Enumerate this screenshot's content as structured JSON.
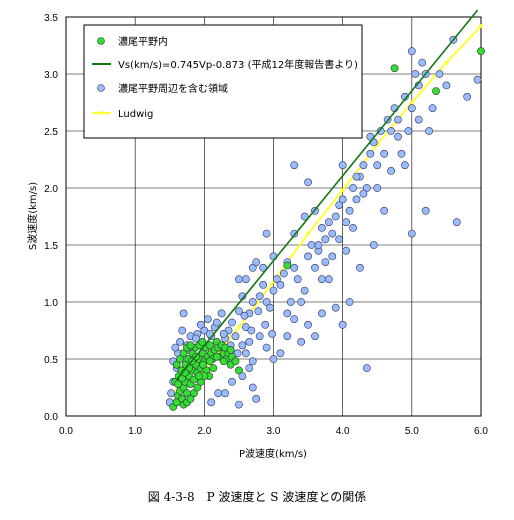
{
  "caption": "図 4-3-8　P 波速度と S 波速度との関係",
  "chart_data": {
    "type": "scatter",
    "title": "",
    "xlabel": "P波速度(km/s)",
    "ylabel": "S波速度(km/s)",
    "xlim": [
      0.0,
      6.0
    ],
    "ylim": [
      0.0,
      3.5
    ],
    "xticks": [
      "0.0",
      "1.0",
      "2.0",
      "3.0",
      "4.0",
      "5.0",
      "6.0"
    ],
    "yticks": [
      "0.0",
      "0.5",
      "1.0",
      "1.5",
      "2.0",
      "2.5",
      "3.0",
      "3.5"
    ],
    "grid": true,
    "legend_position": "top-left",
    "series": [
      {
        "name": "濃尾平野内",
        "kind": "scatter",
        "color": "#33dd33",
        "points": [
          [
            1.55,
            0.08
          ],
          [
            1.6,
            0.12
          ],
          [
            1.62,
            0.18
          ],
          [
            1.65,
            0.22
          ],
          [
            1.68,
            0.15
          ],
          [
            1.7,
            0.25
          ],
          [
            1.72,
            0.3
          ],
          [
            1.75,
            0.2
          ],
          [
            1.78,
            0.35
          ],
          [
            1.8,
            0.28
          ],
          [
            1.82,
            0.4
          ],
          [
            1.85,
            0.32
          ],
          [
            1.88,
            0.45
          ],
          [
            1.9,
            0.38
          ],
          [
            1.92,
            0.5
          ],
          [
            1.95,
            0.42
          ],
          [
            1.98,
            0.55
          ],
          [
            2.0,
            0.48
          ],
          [
            2.02,
            0.6
          ],
          [
            2.05,
            0.52
          ],
          [
            2.08,
            0.62
          ],
          [
            2.1,
            0.55
          ],
          [
            2.12,
            0.5
          ],
          [
            2.15,
            0.58
          ],
          [
            2.18,
            0.65
          ],
          [
            2.2,
            0.6
          ],
          [
            2.22,
            0.52
          ],
          [
            2.25,
            0.62
          ],
          [
            2.28,
            0.55
          ],
          [
            2.3,
            0.6
          ],
          [
            2.32,
            0.5
          ],
          [
            2.35,
            0.55
          ],
          [
            2.38,
            0.45
          ],
          [
            2.4,
            0.52
          ],
          [
            2.45,
            0.48
          ],
          [
            2.5,
            0.4
          ],
          [
            1.58,
            0.3
          ],
          [
            1.63,
            0.35
          ],
          [
            1.67,
            0.4
          ],
          [
            1.73,
            0.45
          ],
          [
            1.77,
            0.5
          ],
          [
            1.83,
            0.55
          ],
          [
            1.87,
            0.6
          ],
          [
            1.93,
            0.62
          ],
          [
            1.97,
            0.65
          ],
          [
            2.03,
            0.4
          ],
          [
            2.07,
            0.35
          ],
          [
            2.13,
            0.42
          ],
          [
            1.6,
            0.45
          ],
          [
            1.65,
            0.5
          ],
          [
            1.7,
            0.55
          ],
          [
            1.75,
            0.6
          ],
          [
            1.8,
            0.62
          ],
          [
            1.85,
            0.2
          ],
          [
            1.9,
            0.25
          ],
          [
            1.95,
            0.3
          ],
          [
            2.0,
            0.35
          ],
          [
            1.7,
            0.1
          ],
          [
            1.75,
            0.12
          ],
          [
            1.8,
            0.15
          ],
          [
            1.62,
            0.28
          ],
          [
            1.68,
            0.33
          ],
          [
            1.78,
            0.42
          ],
          [
            1.88,
            0.52
          ],
          [
            1.98,
            0.45
          ],
          [
            2.08,
            0.48
          ],
          [
            2.18,
            0.52
          ],
          [
            2.28,
            0.48
          ],
          [
            2.38,
            0.58
          ],
          [
            1.72,
            0.38
          ],
          [
            1.82,
            0.48
          ],
          [
            1.92,
            0.35
          ],
          [
            3.2,
            1.32
          ],
          [
            4.75,
            3.05
          ],
          [
            5.35,
            2.85
          ],
          [
            6.0,
            3.2
          ]
        ]
      },
      {
        "name": "Vs(km/s)=0.745Vp-0.873 (平成12年度報告書より)",
        "kind": "line",
        "color": "#117711",
        "x": [
          1.6,
          5.95
        ],
        "y": [
          0.319,
          3.56
        ]
      },
      {
        "name": "濃尾平野周辺を含む領域",
        "kind": "scatter",
        "color": "#99bbff",
        "points": [
          [
            1.5,
            0.12
          ],
          [
            1.52,
            0.2
          ],
          [
            1.55,
            0.3
          ],
          [
            1.6,
            0.42
          ],
          [
            1.62,
            0.55
          ],
          [
            1.65,
            0.65
          ],
          [
            1.68,
            0.75
          ],
          [
            1.7,
            0.9
          ],
          [
            1.72,
            0.5
          ],
          [
            1.58,
            0.6
          ],
          [
            1.75,
            0.62
          ],
          [
            1.8,
            0.7
          ],
          [
            1.85,
            0.6
          ],
          [
            1.9,
            0.72
          ],
          [
            1.95,
            0.8
          ],
          [
            2.0,
            0.75
          ],
          [
            2.05,
            0.85
          ],
          [
            2.1,
            0.7
          ],
          [
            2.15,
            0.78
          ],
          [
            2.2,
            0.6
          ],
          [
            2.25,
            0.9
          ],
          [
            2.3,
            0.68
          ],
          [
            2.35,
            0.75
          ],
          [
            2.4,
            0.82
          ],
          [
            2.45,
            0.7
          ],
          [
            2.5,
            0.92
          ],
          [
            2.55,
            0.62
          ],
          [
            2.6,
            0.55
          ],
          [
            2.65,
            0.42
          ],
          [
            2.7,
            0.25
          ],
          [
            2.75,
            0.15
          ],
          [
            2.4,
            0.3
          ],
          [
            2.3,
            0.2
          ],
          [
            2.5,
            0.1
          ],
          [
            2.2,
            0.2
          ],
          [
            2.1,
            0.12
          ],
          [
            2.55,
            0.35
          ],
          [
            2.6,
            0.78
          ],
          [
            2.65,
            0.9
          ],
          [
            2.7,
            1.0
          ],
          [
            2.5,
            1.2
          ],
          [
            2.55,
            1.05
          ],
          [
            2.6,
            1.2
          ],
          [
            2.7,
            1.3
          ],
          [
            2.75,
            1.35
          ],
          [
            2.8,
            1.05
          ],
          [
            2.85,
            1.15
          ],
          [
            2.9,
            1.0
          ],
          [
            2.95,
            0.95
          ],
          [
            3.0,
            1.1
          ],
          [
            3.05,
            1.2
          ],
          [
            3.1,
            1.15
          ],
          [
            3.15,
            1.25
          ],
          [
            3.2,
            0.9
          ],
          [
            3.25,
            1.0
          ],
          [
            3.3,
            1.3
          ],
          [
            3.35,
            1.2
          ],
          [
            3.4,
            1.0
          ],
          [
            3.45,
            1.1
          ],
          [
            3.5,
            1.4
          ],
          [
            3.55,
            1.5
          ],
          [
            3.6,
            1.3
          ],
          [
            3.65,
            1.45
          ],
          [
            3.7,
            1.2
          ],
          [
            3.75,
            1.55
          ],
          [
            3.8,
            1.7
          ],
          [
            3.85,
            1.6
          ],
          [
            3.9,
            1.75
          ],
          [
            3.95,
            1.85
          ],
          [
            4.0,
            1.9
          ],
          [
            4.05,
            1.7
          ],
          [
            4.1,
            1.8
          ],
          [
            4.15,
            2.0
          ],
          [
            4.2,
            1.9
          ],
          [
            4.25,
            2.1
          ],
          [
            4.3,
            2.2
          ],
          [
            4.35,
            2.0
          ],
          [
            4.4,
            2.3
          ],
          [
            4.45,
            2.4
          ],
          [
            4.5,
            2.2
          ],
          [
            4.55,
            2.5
          ],
          [
            4.6,
            2.3
          ],
          [
            4.65,
            2.6
          ],
          [
            4.7,
            2.5
          ],
          [
            4.75,
            2.7
          ],
          [
            4.8,
            2.6
          ],
          [
            4.85,
            2.3
          ],
          [
            4.9,
            2.8
          ],
          [
            4.95,
            2.5
          ],
          [
            5.0,
            2.7
          ],
          [
            5.05,
            3.0
          ],
          [
            5.1,
            2.9
          ],
          [
            5.15,
            3.1
          ],
          [
            5.2,
            3.0
          ],
          [
            5.25,
            2.5
          ],
          [
            5.3,
            2.7
          ],
          [
            5.4,
            3.0
          ],
          [
            5.5,
            2.9
          ],
          [
            5.6,
            3.3
          ],
          [
            5.8,
            2.8
          ],
          [
            5.95,
            2.95
          ],
          [
            5.0,
            3.2
          ],
          [
            5.65,
            1.7
          ],
          [
            5.2,
            1.8
          ],
          [
            5.0,
            1.6
          ],
          [
            4.35,
            0.42
          ],
          [
            4.1,
            1.0
          ],
          [
            4.0,
            0.8
          ],
          [
            3.9,
            0.95
          ],
          [
            3.8,
            1.2
          ],
          [
            3.7,
            0.9
          ],
          [
            3.6,
            0.7
          ],
          [
            3.5,
            0.8
          ],
          [
            3.4,
            0.65
          ],
          [
            3.3,
            0.85
          ],
          [
            3.2,
            0.7
          ],
          [
            3.1,
            0.55
          ],
          [
            3.0,
            0.5
          ],
          [
            2.9,
            0.6
          ],
          [
            2.8,
            0.7
          ],
          [
            2.7,
            0.48
          ],
          [
            2.65,
            0.65
          ],
          [
            3.3,
            2.2
          ],
          [
            3.5,
            2.05
          ],
          [
            3.6,
            1.8
          ],
          [
            3.7,
            1.65
          ],
          [
            3.45,
            1.75
          ],
          [
            3.3,
            1.6
          ],
          [
            2.9,
            1.6
          ],
          [
            2.85,
            1.3
          ],
          [
            3.0,
            1.4
          ],
          [
            3.2,
            1.35
          ],
          [
            4.0,
            2.2
          ],
          [
            4.2,
            2.1
          ],
          [
            4.4,
            2.45
          ],
          [
            4.3,
            1.95
          ],
          [
            4.5,
            2.0
          ],
          [
            4.7,
            2.15
          ],
          [
            4.6,
            1.8
          ],
          [
            4.8,
            2.45
          ],
          [
            4.9,
            2.2
          ],
          [
            5.1,
            2.6
          ],
          [
            3.95,
            1.55
          ],
          [
            4.05,
            1.45
          ],
          [
            4.15,
            1.65
          ],
          [
            3.85,
            1.4
          ],
          [
            4.25,
            1.3
          ],
          [
            4.45,
            1.5
          ],
          [
            3.75,
            1.35
          ],
          [
            3.65,
            1.5
          ],
          [
            1.55,
            0.48
          ],
          [
            1.65,
            0.32
          ],
          [
            1.78,
            0.58
          ],
          [
            1.88,
            0.68
          ],
          [
            1.98,
            0.62
          ],
          [
            2.08,
            0.72
          ],
          [
            2.18,
            0.82
          ],
          [
            2.28,
            0.72
          ],
          [
            2.38,
            0.62
          ],
          [
            2.48,
            0.55
          ],
          [
            2.58,
            0.88
          ],
          [
            2.68,
            0.75
          ],
          [
            2.78,
            0.92
          ],
          [
            2.88,
            0.8
          ],
          [
            2.98,
            0.72
          ]
        ]
      },
      {
        "name": "Ludwig",
        "kind": "line",
        "color": "#ffff33",
        "x": [
          1.6,
          2.0,
          2.5,
          3.0,
          3.5,
          4.0,
          4.5,
          5.0,
          5.5,
          6.0
        ],
        "y": [
          0.22,
          0.4,
          0.78,
          1.18,
          1.6,
          1.98,
          2.38,
          2.75,
          3.1,
          3.42
        ]
      }
    ]
  }
}
